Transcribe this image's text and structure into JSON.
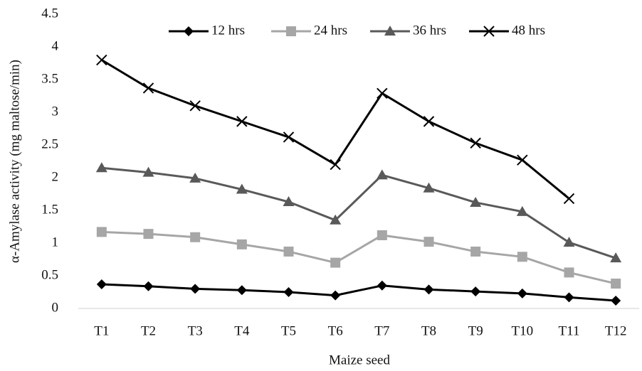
{
  "chart_data": {
    "type": "line",
    "y_label": "α-Amylase activity (mg maltose/min)",
    "x_label": "Maize seed",
    "categories": [
      "T1",
      "T2",
      "T3",
      "T4",
      "T5",
      "T6",
      "T7",
      "T8",
      "T9",
      "T10",
      "T11",
      "T12"
    ],
    "series": [
      {
        "name": "12 hrs",
        "color": "#000000",
        "marker": "diamond",
        "values": [
          0.37,
          0.34,
          0.3,
          0.28,
          0.25,
          0.2,
          0.35,
          0.29,
          0.26,
          0.23,
          0.17,
          0.12
        ]
      },
      {
        "name": "24 hrs",
        "color": "#a6a6a6",
        "marker": "square",
        "values": [
          1.17,
          1.14,
          1.09,
          0.98,
          0.87,
          0.7,
          1.12,
          1.02,
          0.87,
          0.79,
          0.55,
          0.38
        ]
      },
      {
        "name": "36 hrs",
        "color": "#595959",
        "marker": "triangle",
        "values": [
          2.15,
          2.08,
          1.99,
          1.82,
          1.63,
          1.35,
          2.04,
          1.84,
          1.62,
          1.48,
          1.01,
          0.77
        ]
      },
      {
        "name": "48 hrs",
        "color": "#000000",
        "marker": "x",
        "values": [
          3.8,
          3.37,
          3.1,
          2.86,
          2.62,
          2.2,
          3.29,
          2.86,
          2.53,
          2.27,
          1.68,
          null
        ]
      }
    ],
    "ylim": [
      0,
      4.5
    ],
    "yticks": [
      0,
      0.5,
      1,
      1.5,
      2,
      2.5,
      3,
      3.5,
      4,
      4.5
    ],
    "legend": "top"
  }
}
